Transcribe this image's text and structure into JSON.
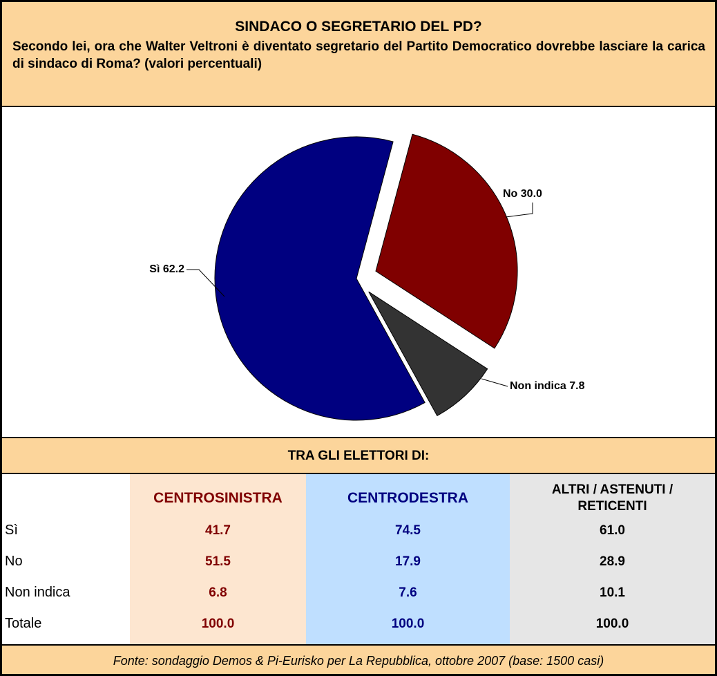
{
  "header": {
    "title": "SINDACO O SEGRETARIO DEL PD?",
    "subtitle": "Secondo lei, ora che Walter Veltroni è diventato segretario del Partito Democratico dovrebbe lasciare la carica di sindaco di Roma? (valori percentuali)"
  },
  "chart_data": {
    "type": "pie",
    "categories": [
      "Sì",
      "No",
      "Non indica"
    ],
    "values": [
      62.2,
      30.0,
      7.8
    ],
    "value_labels": [
      "62.2",
      "30.0",
      "7.8"
    ],
    "colors": [
      "#000080",
      "#800000",
      "#333333"
    ]
  },
  "table": {
    "title": "TRA GLI ELETTORI DI:",
    "columns": [
      "CENTROSINISTRA",
      "CENTRODESTRA",
      "ALTRI / ASTENUTI / RETICENTI"
    ],
    "rows": [
      [
        "Sì",
        "41.7",
        "74.5",
        "61.0"
      ],
      [
        "No",
        "51.5",
        "17.9",
        "28.9"
      ],
      [
        "Non indica",
        "6.8",
        "7.6",
        "10.1"
      ],
      [
        "Totale",
        "100.0",
        "100.0",
        "100.0"
      ]
    ]
  },
  "footer": {
    "source": "Fonte: sondaggio Demos & Pi-Eurisko per La Repubblica, ottobre 2007 (base: 1500 casi)"
  }
}
